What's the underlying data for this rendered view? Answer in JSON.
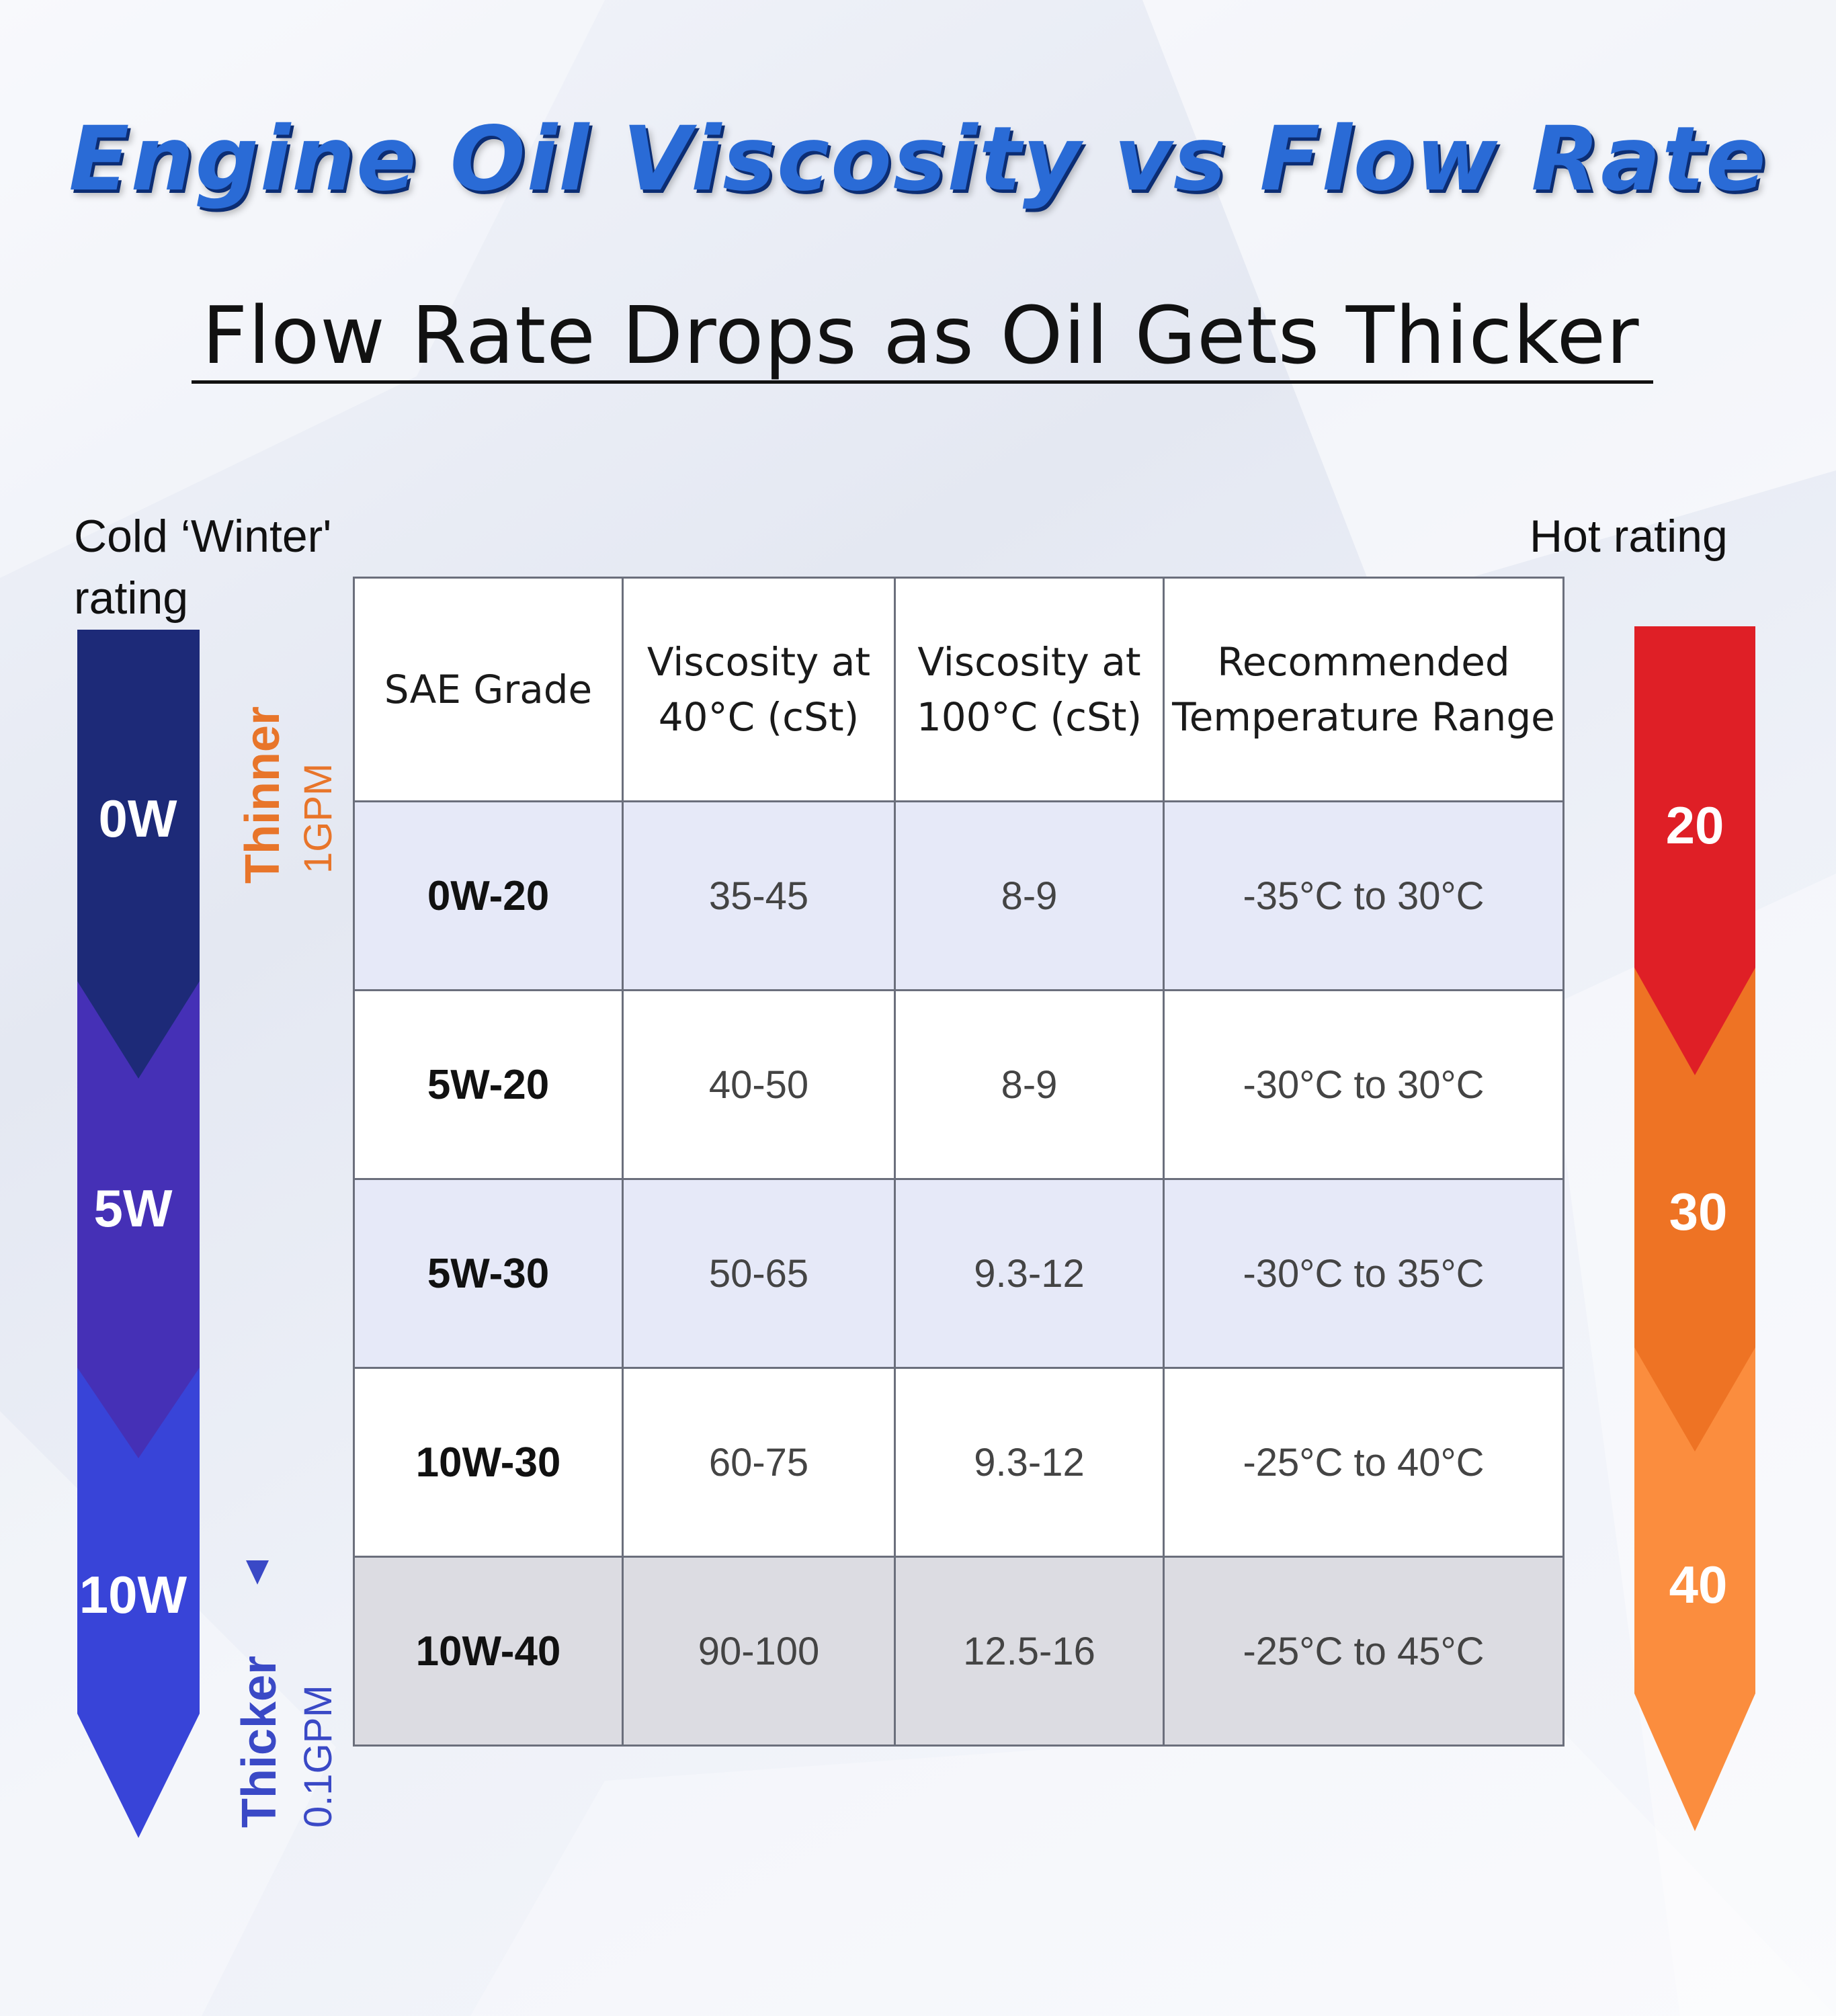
{
  "title": "Engine Oil Viscosity vs Flow Rate",
  "subtitle": "Flow Rate Drops as Oil Gets Thicker",
  "left_scale": {
    "label": "Cold ‘Winter' rating",
    "grades": [
      "0W",
      "5W",
      "10W"
    ],
    "colors": [
      "#1d2a78",
      "#4530b6",
      "#3844d8"
    ]
  },
  "right_scale": {
    "label": "Hot rating",
    "grades": [
      "20",
      "30",
      "40"
    ],
    "colors": [
      "#df1f26",
      "#ee7324",
      "#fb8d3e"
    ]
  },
  "flow_indicator": {
    "top_label": "Thinner",
    "top_rate": "1GPM",
    "bottom_label": "Thicker",
    "bottom_rate": "0.1GPM"
  },
  "table": {
    "headers": [
      "SAE Grade",
      "Viscosity at 40°C (cSt)",
      "Viscosity at 100°C (cSt)",
      "Recommended Temperature Range"
    ],
    "rows": [
      [
        "0W-20",
        "35-45",
        "8-9",
        "-35°C to 30°C"
      ],
      [
        "5W-20",
        "40-50",
        "8-9",
        "-30°C to 30°C"
      ],
      [
        "5W-30",
        "50-65",
        "9.3-12",
        "-30°C to 35°C"
      ],
      [
        "10W-30",
        "60-75",
        "9.3-12",
        "-25°C to 40°C"
      ],
      [
        "10W-40",
        "90-100",
        "12.5-16",
        "-25°C to 45°C"
      ]
    ]
  }
}
